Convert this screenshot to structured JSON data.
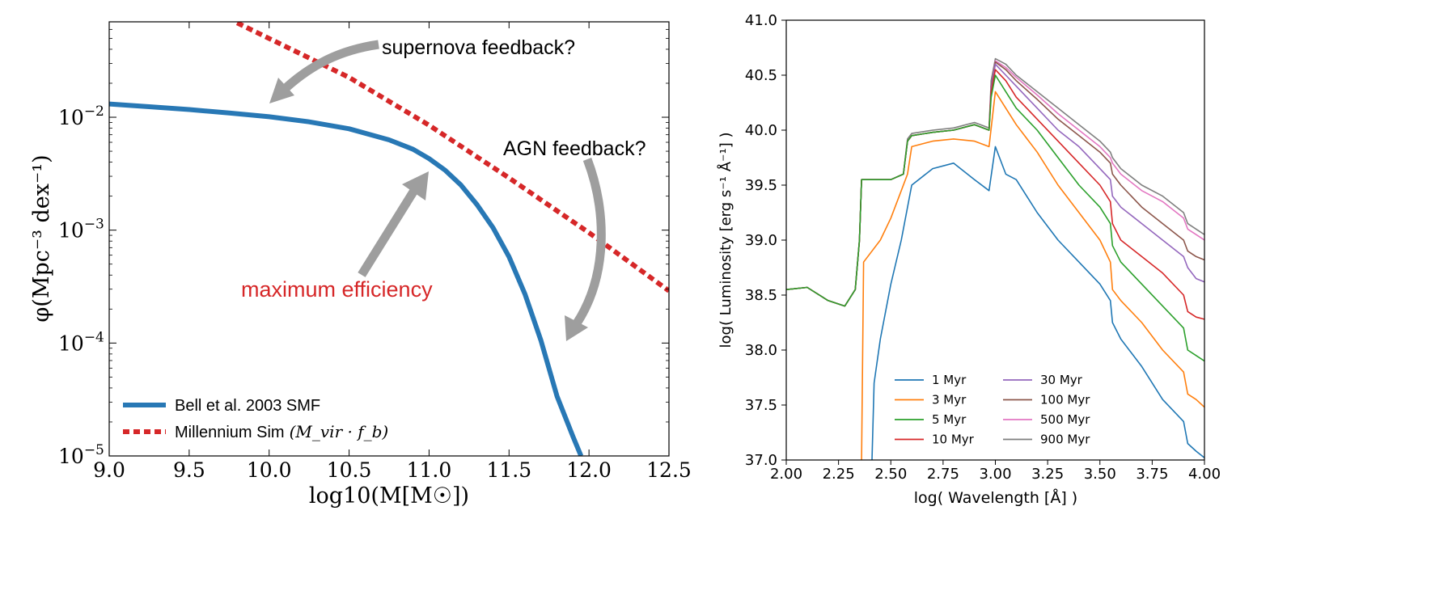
{
  "chart_data": [
    {
      "type": "line",
      "xlabel": "log10(M[M☉])",
      "ylabel": "φ(Mpc⁻³ dex⁻¹)",
      "xlim": [
        9.0,
        12.5
      ],
      "ylim": [
        1e-05,
        0.07
      ],
      "y_scale": "log",
      "grid": false,
      "legend_position": "bottom-left",
      "x_ticks": [
        "9.0",
        "9.5",
        "10.0",
        "10.5",
        "11.0",
        "11.5",
        "12.0",
        "12.5"
      ],
      "y_ticks": [
        {
          "value": 0.01,
          "base": "10",
          "exp": "−2"
        },
        {
          "value": 0.001,
          "base": "10",
          "exp": "−3"
        },
        {
          "value": 0.0001,
          "base": "10",
          "exp": "−4"
        },
        {
          "value": 1e-05,
          "base": "10",
          "exp": "−5"
        }
      ],
      "series": [
        {
          "name": "Bell et al. 2003 SMF",
          "color": "#2878b5",
          "style": "solid",
          "x": [
            9.0,
            9.25,
            9.5,
            9.75,
            10.0,
            10.25,
            10.5,
            10.75,
            10.9,
            11.0,
            11.1,
            11.2,
            11.3,
            11.4,
            11.5,
            11.6,
            11.7,
            11.8,
            11.9,
            11.95
          ],
          "y": [
            0.0131,
            0.0124,
            0.0117,
            0.0109,
            0.0101,
            0.0091,
            0.0079,
            0.0063,
            0.0052,
            0.0043,
            0.0034,
            0.0025,
            0.00168,
            0.00105,
            0.00058,
            0.00027,
            0.000105,
            3.38e-05,
            1.48e-05,
            1e-05
          ]
        },
        {
          "name": "Millennium Sim",
          "legend_math": "(M_vir · f_b)",
          "color": "#d62728",
          "style": "dashed",
          "x": [
            9.8,
            10.5,
            11.0,
            11.5,
            12.0,
            12.5
          ],
          "y": [
            0.0685,
            0.0225,
            0.0085,
            0.0029,
            0.00095,
            0.00029
          ]
        }
      ],
      "annotations": [
        {
          "text": "supernova feedback?",
          "color": "#000000"
        },
        {
          "text": "AGN feedback?",
          "color": "#000000"
        },
        {
          "text": "maximum efficiency",
          "color": "#d62728"
        }
      ],
      "arrow_color": "#9e9e9e"
    },
    {
      "type": "line",
      "xlabel": "log( Wavelength [Å] )",
      "ylabel": "log( Luminosity [erg s⁻¹ Å⁻¹] )",
      "xlim": [
        2.0,
        4.0
      ],
      "ylim": [
        37.0,
        41.0
      ],
      "grid": false,
      "legend_position": "bottom-center",
      "x_ticks": [
        "2.00",
        "2.25",
        "2.50",
        "2.75",
        "3.00",
        "3.25",
        "3.50",
        "3.75",
        "4.00"
      ],
      "y_ticks": [
        "37.0",
        "37.5",
        "38.0",
        "38.5",
        "39.0",
        "39.5",
        "40.0",
        "40.5",
        "41.0"
      ],
      "series": [
        {
          "name": "1 Myr",
          "color": "#1f77b4",
          "x": [
            2.41,
            2.42,
            2.45,
            2.5,
            2.55,
            2.6,
            2.7,
            2.8,
            2.9,
            2.97,
            3.0,
            3.05,
            3.1,
            3.2,
            3.3,
            3.4,
            3.5,
            3.55,
            3.56,
            3.6,
            3.7,
            3.8,
            3.9,
            3.92,
            3.96,
            4.0
          ],
          "y": [
            37.0,
            37.7,
            38.1,
            38.6,
            39.0,
            39.5,
            39.65,
            39.7,
            39.55,
            39.45,
            39.85,
            39.6,
            39.55,
            39.25,
            39.0,
            38.8,
            38.6,
            38.45,
            38.25,
            38.1,
            37.85,
            37.55,
            37.35,
            37.15,
            37.08,
            37.02
          ]
        },
        {
          "name": "3 Myr",
          "color": "#ff7f0e",
          "x": [
            2.36,
            2.37,
            2.45,
            2.5,
            2.55,
            2.58,
            2.6,
            2.7,
            2.8,
            2.9,
            2.97,
            3.0,
            3.05,
            3.1,
            3.2,
            3.3,
            3.4,
            3.5,
            3.55,
            3.56,
            3.6,
            3.7,
            3.8,
            3.9,
            3.92,
            3.96,
            4.0
          ],
          "y": [
            37.0,
            38.8,
            39.0,
            39.2,
            39.45,
            39.6,
            39.85,
            39.9,
            39.92,
            39.9,
            39.85,
            40.35,
            40.2,
            40.05,
            39.8,
            39.5,
            39.25,
            39.0,
            38.8,
            38.55,
            38.45,
            38.25,
            38.0,
            37.8,
            37.6,
            37.55,
            37.48
          ]
        },
        {
          "name": "5 Myr",
          "color": "#2ca02c",
          "x": [
            2.0,
            2.1,
            2.2,
            2.28,
            2.33,
            2.35,
            2.36,
            2.5,
            2.56,
            2.58,
            2.6,
            2.7,
            2.8,
            2.9,
            2.97,
            2.98,
            3.0,
            3.05,
            3.1,
            3.2,
            3.3,
            3.4,
            3.5,
            3.55,
            3.56,
            3.6,
            3.7,
            3.8,
            3.9,
            3.92,
            3.96,
            4.0
          ],
          "y": [
            38.55,
            38.57,
            38.45,
            38.4,
            38.55,
            39.0,
            39.55,
            39.55,
            39.6,
            39.9,
            39.95,
            39.98,
            40.0,
            40.05,
            40.0,
            40.3,
            40.5,
            40.35,
            40.2,
            40.0,
            39.75,
            39.5,
            39.3,
            39.15,
            38.95,
            38.8,
            38.6,
            38.4,
            38.2,
            38.0,
            37.95,
            37.9
          ]
        },
        {
          "name": "10 Myr",
          "color": "#d62728",
          "x": [
            2.0,
            2.1,
            2.2,
            2.28,
            2.33,
            2.35,
            2.36,
            2.5,
            2.56,
            2.58,
            2.6,
            2.7,
            2.8,
            2.9,
            2.97,
            2.98,
            3.0,
            3.05,
            3.1,
            3.2,
            3.3,
            3.4,
            3.5,
            3.55,
            3.56,
            3.6,
            3.7,
            3.8,
            3.9,
            3.92,
            3.96,
            4.0
          ],
          "y": [
            38.55,
            38.57,
            38.45,
            38.4,
            38.55,
            39.0,
            39.55,
            39.55,
            39.6,
            39.9,
            39.95,
            39.98,
            40.0,
            40.05,
            40.0,
            40.35,
            40.55,
            40.45,
            40.3,
            40.1,
            39.9,
            39.7,
            39.5,
            39.35,
            39.15,
            39.0,
            38.85,
            38.7,
            38.5,
            38.35,
            38.3,
            38.28
          ]
        },
        {
          "name": "30 Myr",
          "color": "#9467bd",
          "x": [
            2.0,
            2.1,
            2.2,
            2.28,
            2.33,
            2.35,
            2.36,
            2.5,
            2.56,
            2.58,
            2.6,
            2.7,
            2.8,
            2.9,
            2.97,
            2.98,
            3.0,
            3.05,
            3.1,
            3.2,
            3.3,
            3.4,
            3.5,
            3.55,
            3.56,
            3.6,
            3.7,
            3.8,
            3.9,
            3.92,
            3.96,
            4.0
          ],
          "y": [
            38.55,
            38.57,
            38.45,
            38.4,
            38.55,
            39.0,
            39.55,
            39.55,
            39.6,
            39.9,
            39.95,
            39.98,
            40.0,
            40.05,
            40.0,
            40.38,
            40.6,
            40.5,
            40.4,
            40.2,
            40.0,
            39.85,
            39.65,
            39.55,
            39.4,
            39.3,
            39.15,
            39.0,
            38.85,
            38.75,
            38.65,
            38.62
          ]
        },
        {
          "name": "100 Myr",
          "color": "#8c564b",
          "x": [
            2.0,
            2.1,
            2.2,
            2.28,
            2.33,
            2.35,
            2.36,
            2.5,
            2.56,
            2.58,
            2.6,
            2.7,
            2.8,
            2.9,
            2.97,
            2.98,
            3.0,
            3.05,
            3.1,
            3.2,
            3.3,
            3.4,
            3.5,
            3.55,
            3.56,
            3.6,
            3.7,
            3.8,
            3.9,
            3.92,
            3.96,
            4.0
          ],
          "y": [
            38.55,
            38.57,
            38.45,
            38.4,
            38.55,
            39.0,
            39.55,
            39.55,
            39.6,
            39.9,
            39.95,
            39.98,
            40.0,
            40.05,
            40.0,
            40.4,
            40.62,
            40.55,
            40.45,
            40.28,
            40.1,
            39.95,
            39.8,
            39.7,
            39.6,
            39.5,
            39.3,
            39.15,
            39.0,
            38.9,
            38.85,
            38.82
          ]
        },
        {
          "name": "500 Myr",
          "color": "#e377c2",
          "x": [
            2.0,
            2.1,
            2.2,
            2.28,
            2.33,
            2.35,
            2.36,
            2.5,
            2.56,
            2.58,
            2.6,
            2.7,
            2.8,
            2.9,
            2.97,
            2.98,
            3.0,
            3.05,
            3.1,
            3.2,
            3.3,
            3.4,
            3.5,
            3.55,
            3.56,
            3.6,
            3.7,
            3.8,
            3.9,
            3.92,
            3.96,
            4.0
          ],
          "y": [
            38.55,
            38.57,
            38.45,
            38.4,
            38.55,
            39.0,
            39.55,
            39.55,
            39.6,
            39.9,
            39.95,
            39.98,
            40.0,
            40.05,
            40.0,
            40.4,
            40.63,
            40.57,
            40.48,
            40.32,
            40.15,
            40.0,
            39.85,
            39.75,
            39.7,
            39.6,
            39.45,
            39.35,
            39.2,
            39.1,
            39.05,
            39.0
          ]
        },
        {
          "name": "900 Myr",
          "color": "#7f7f7f",
          "x": [
            2.0,
            2.1,
            2.2,
            2.28,
            2.33,
            2.35,
            2.36,
            2.5,
            2.56,
            2.58,
            2.6,
            2.7,
            2.8,
            2.9,
            2.97,
            2.98,
            3.0,
            3.05,
            3.1,
            3.2,
            3.3,
            3.4,
            3.5,
            3.55,
            3.56,
            3.6,
            3.7,
            3.8,
            3.9,
            3.92,
            3.96,
            4.0
          ],
          "y": [
            38.55,
            38.57,
            38.45,
            38.4,
            38.55,
            39.0,
            39.55,
            39.55,
            39.6,
            39.92,
            39.97,
            40.0,
            40.02,
            40.07,
            40.02,
            40.45,
            40.65,
            40.6,
            40.5,
            40.35,
            40.2,
            40.05,
            39.9,
            39.8,
            39.75,
            39.65,
            39.5,
            39.4,
            39.25,
            39.15,
            39.1,
            39.05
          ]
        }
      ]
    }
  ]
}
